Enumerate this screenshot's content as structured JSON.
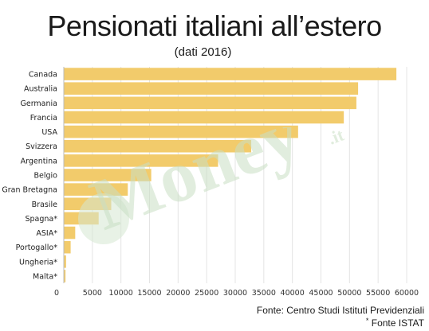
{
  "chart_data": {
    "type": "bar",
    "orientation": "horizontal",
    "title": "Pensionati italiani all’estero",
    "subtitle": "(dati 2016)",
    "categories": [
      "Canada",
      "Australia",
      "Germania",
      "Francia",
      "USA",
      "Svizzera",
      "Argentina",
      "Belgio",
      "Gran Bretagna",
      "Brasile",
      "Spagna*",
      "ASIA*",
      "Portogallo*",
      "Ungheria*",
      "Malta*"
    ],
    "values": [
      58200,
      51500,
      51200,
      49000,
      41000,
      32800,
      27000,
      15300,
      11200,
      8300,
      6100,
      2000,
      1200,
      400,
      300
    ],
    "xlim": [
      0,
      60000
    ],
    "x_ticks": [
      "0",
      "5000",
      "10000",
      "15000",
      "20000",
      "25000",
      "30000",
      "35000",
      "40000",
      "45000",
      "50000",
      "55000",
      "60000"
    ],
    "grid": true,
    "bar_color": "#f2cb6b",
    "source_line_1": "Fonte: Centro Studi Istituti Previdenziali",
    "source_line_2": "Fonte ISTAT",
    "source_line_2_mark": "*",
    "watermark_text": "Money",
    "watermark_suffix": ".it",
    "watermark_color": "#c9dfc4"
  }
}
